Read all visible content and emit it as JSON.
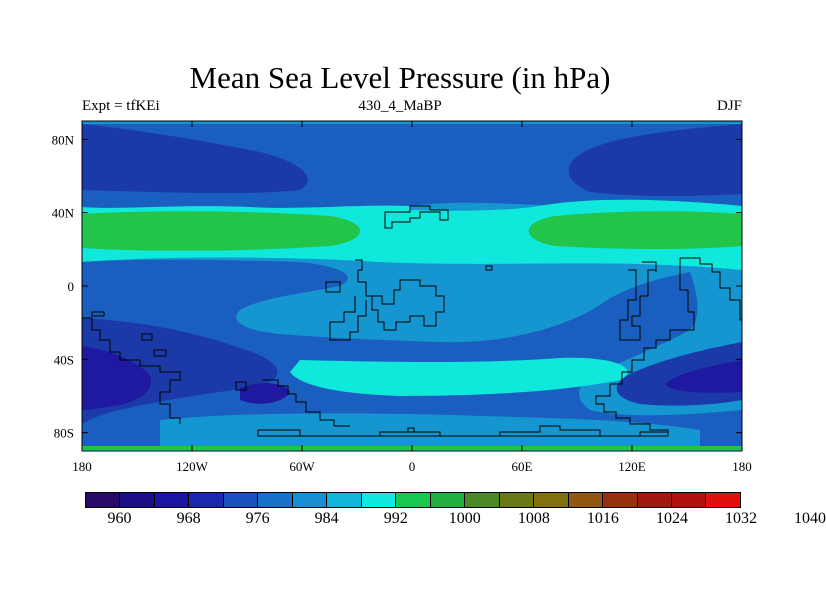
{
  "title": "Mean Sea Level Pressure (in hPa)",
  "subtitle_left": "Expt = tfKEi",
  "subtitle_center": "430_4_MaBP",
  "subtitle_right": "DJF",
  "map": {
    "lon_range": [
      -180,
      180
    ],
    "lat_range": [
      -90,
      90
    ],
    "projection": "cylindrical-equidistant",
    "colors": {
      "c960": "#1c0f7a",
      "c968": "#1f18a0",
      "c976": "#1b3aa8",
      "c984": "#1a5fc0",
      "c992": "#1596d0",
      "c1000": "#10e8dc",
      "c1008": "#22c44a"
    }
  },
  "x_ticks": [
    "180",
    "120W",
    "60W",
    "0",
    "60E",
    "120E",
    "180"
  ],
  "y_ticks": [
    "80N",
    "40N",
    "0",
    "40S",
    "80S"
  ],
  "colorbar": {
    "colors": [
      "#2a0a68",
      "#1b0e88",
      "#1a14a0",
      "#1a28b0",
      "#1a50c0",
      "#1870c8",
      "#1690d2",
      "#12b6d8",
      "#10e8e0",
      "#18c850",
      "#20b040",
      "#4a8828",
      "#6a7818",
      "#807010",
      "#905810",
      "#983010",
      "#a01810",
      "#b01010",
      "#e01010"
    ],
    "labels": [
      "960",
      "968",
      "976",
      "984",
      "992",
      "1000",
      "1008",
      "1016",
      "1024",
      "1032",
      "1040"
    ]
  }
}
